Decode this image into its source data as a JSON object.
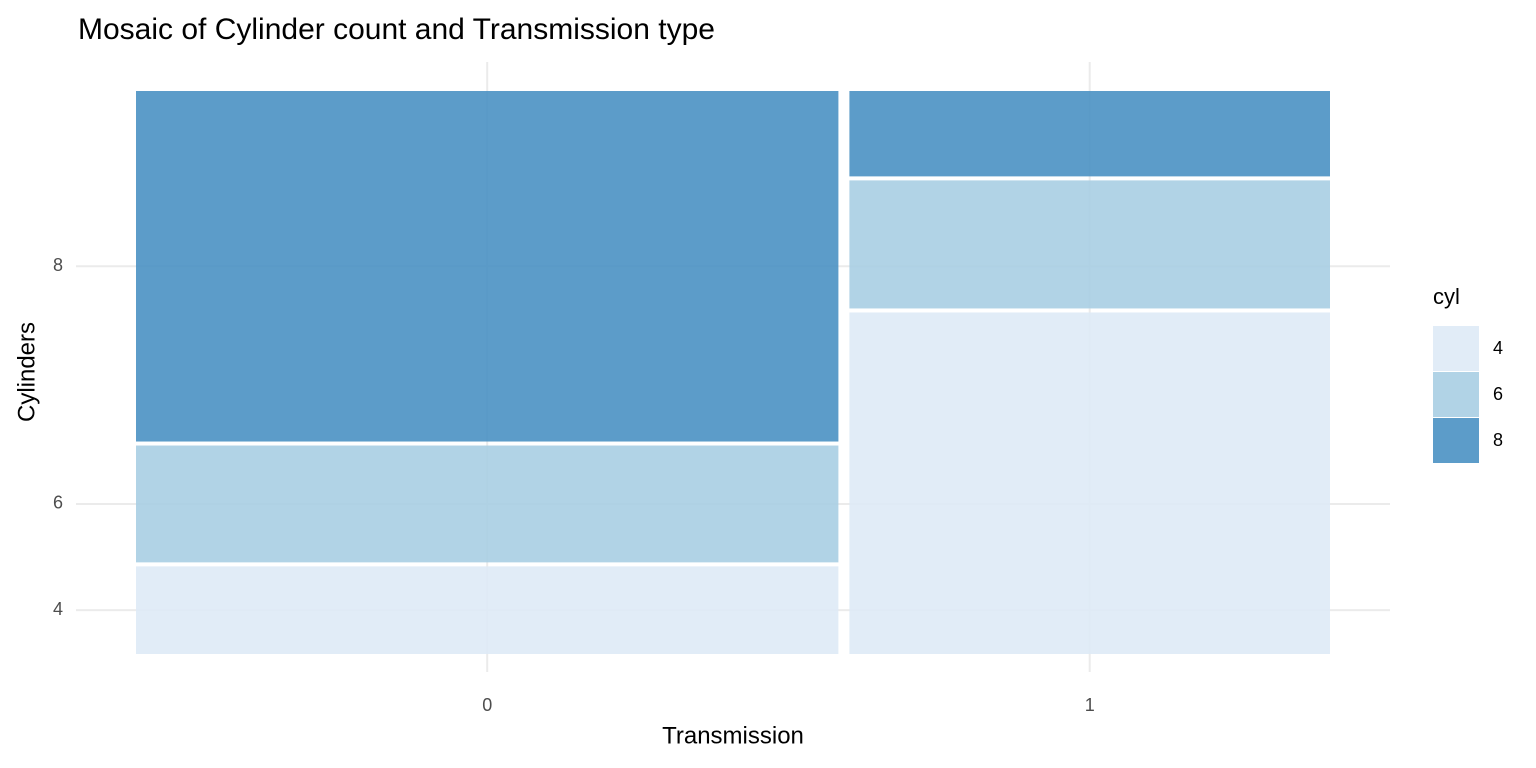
{
  "chart_data": {
    "type": "mosaic",
    "title": "Mosaic of Cylinder count and Transmission type",
    "x_label": "Transmission",
    "y_label": "Cylinders",
    "legend_title": "cyl",
    "categories": [
      "0",
      "1"
    ],
    "series": [
      {
        "name": "4",
        "color": "#deeaf6",
        "values": [
          3,
          8
        ]
      },
      {
        "name": "6",
        "color": "#a9cee3",
        "values": [
          4,
          3
        ]
      },
      {
        "name": "8",
        "color": "#4a91c3",
        "values": [
          12,
          2
        ]
      }
    ],
    "grid": true,
    "legend": "right"
  }
}
